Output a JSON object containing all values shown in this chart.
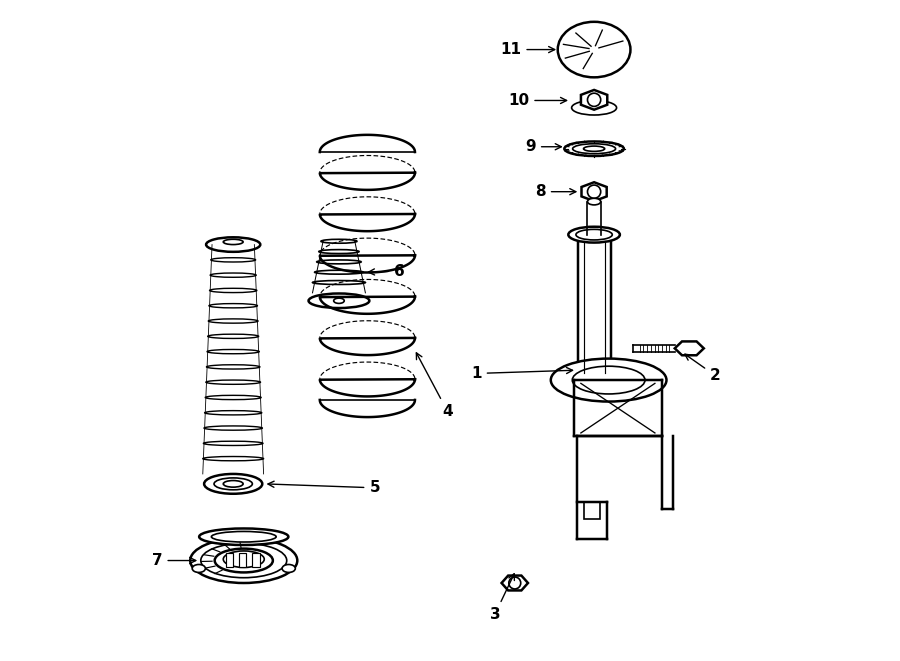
{
  "bg_color": "#ffffff",
  "line_color": "#000000",
  "lw": 1.2,
  "figsize": [
    9.0,
    6.61
  ],
  "dpi": 100
}
